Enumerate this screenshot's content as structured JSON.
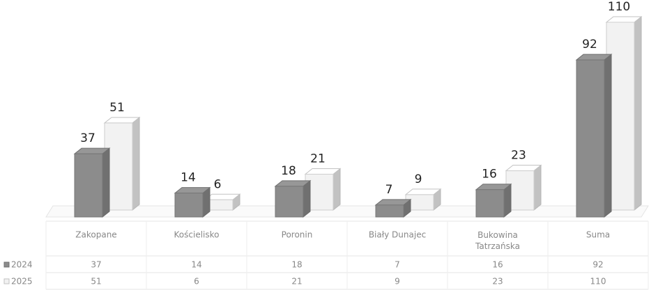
{
  "chart_data": {
    "type": "bar3d",
    "categories": [
      "Zakopane",
      "Kościelisko",
      "Poronin",
      "Biały Dunajec",
      "Bukowina Tatrzańska",
      "Suma"
    ],
    "series": [
      {
        "name": "2024",
        "color": "#8c8c8c",
        "values": [
          37,
          14,
          18,
          7,
          16,
          92
        ]
      },
      {
        "name": "2025",
        "color": "#f2f2f2",
        "values": [
          51,
          6,
          21,
          9,
          23,
          110
        ]
      }
    ],
    "data_table": true
  }
}
